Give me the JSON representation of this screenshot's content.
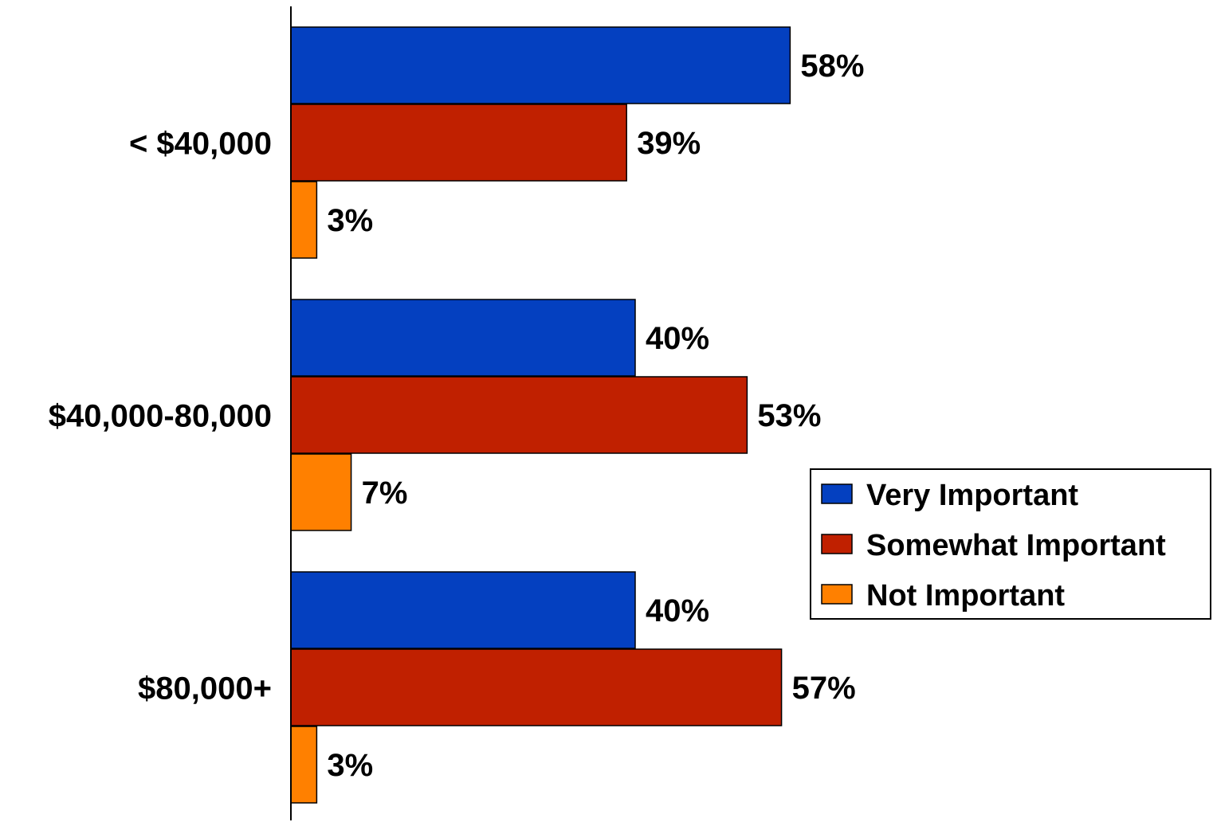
{
  "chart_data": {
    "type": "bar",
    "orientation": "horizontal",
    "categories": [
      "< $40,000",
      "$40,000-80,000",
      "$80,000+"
    ],
    "series": [
      {
        "name": "Very Important",
        "color": "#0440C0",
        "values": [
          58,
          40,
          40
        ],
        "labels": [
          "58%",
          "40%",
          "40%"
        ]
      },
      {
        "name": "Somewhat Important",
        "color": "#C02000",
        "values": [
          39,
          53,
          57
        ],
        "labels": [
          "39%",
          "53%",
          "57%"
        ]
      },
      {
        "name": "Not Important",
        "color": "#FF8000",
        "values": [
          3,
          7,
          3
        ],
        "labels": [
          "3%",
          "7%",
          "3%"
        ]
      }
    ],
    "xlim": [
      0,
      100
    ],
    "grid": false,
    "legend_position": "right"
  }
}
